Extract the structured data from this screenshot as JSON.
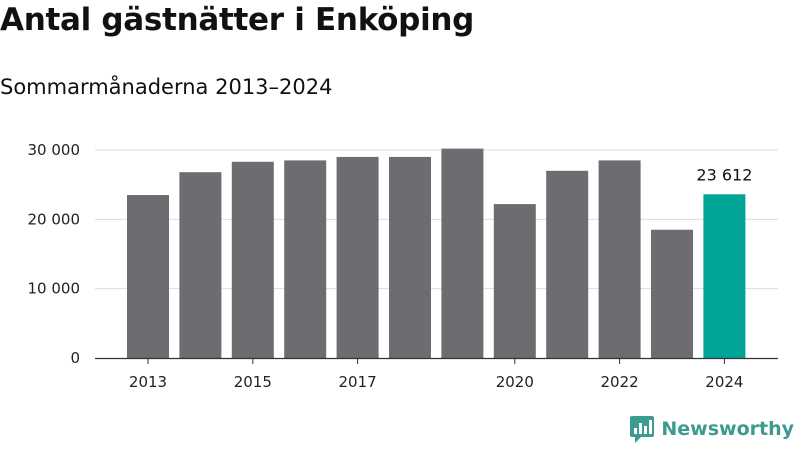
{
  "title": "Antal gästnätter i Enköping",
  "subtitle": "Sommarmånaderna 2013–2024",
  "logo_text": "Newsworthy",
  "colors": {
    "bar": "#6d6c71",
    "highlight": "#00a597",
    "grid": "#dddddd",
    "axis": "#333333"
  },
  "chart_data": {
    "type": "bar",
    "title": "Antal gästnätter i Enköping",
    "subtitle": "Sommarmånaderna 2013–2024",
    "categories": [
      "2013",
      "2014",
      "2015",
      "2016",
      "2017",
      "2018",
      "2019",
      "2020",
      "2021",
      "2022",
      "2023",
      "2024"
    ],
    "values": [
      23500,
      26800,
      28300,
      28500,
      29000,
      29000,
      30200,
      22200,
      27000,
      28500,
      18500,
      23612
    ],
    "x_tick_labels": [
      "2013",
      "",
      "2015",
      "",
      "2017",
      "",
      "",
      "2020",
      "",
      "2022",
      "",
      "2024"
    ],
    "y_ticks": [
      0,
      10000,
      20000,
      30000
    ],
    "y_tick_labels": [
      "0",
      "10 000",
      "20 000",
      "30 000"
    ],
    "ylim": [
      0,
      30000
    ],
    "highlight_index": 11,
    "data_labels": [
      {
        "index": 11,
        "text": "23 612"
      }
    ],
    "grid": true,
    "legend": "none"
  }
}
